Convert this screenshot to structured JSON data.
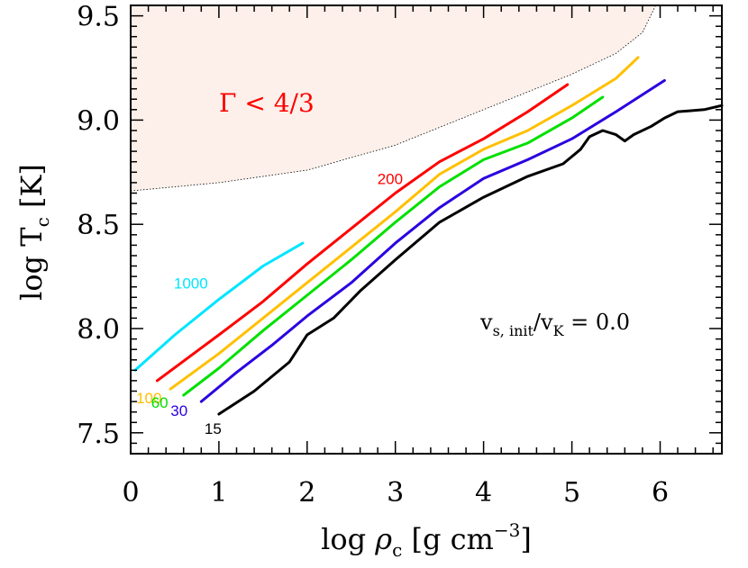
{
  "chart_data": {
    "type": "line",
    "xlabel": {
      "prefix": "log ",
      "symbol": "ρ",
      "sub": "c",
      "unit": " [g cm",
      "exp": "−3",
      "close": "]"
    },
    "ylabel": {
      "prefix": "log T",
      "sub": "c",
      "unit": " [K]"
    },
    "xlim": [
      0,
      6.7
    ],
    "ylim": [
      7.4,
      9.55
    ],
    "x_ticks": [
      "0",
      "1",
      "2",
      "3",
      "4",
      "5",
      "6"
    ],
    "y_ticks": [
      "7.5",
      "8.0",
      "8.5",
      "9.0",
      "9.5"
    ],
    "x_tick_values": [
      0,
      1,
      2,
      3,
      4,
      5,
      6
    ],
    "y_tick_values": [
      7.5,
      8.0,
      8.5,
      9.0,
      9.5
    ],
    "region": {
      "label": "Γ < 4/3",
      "color": "#fdf0ea",
      "boundary": [
        [
          0.0,
          8.66
        ],
        [
          1.0,
          8.7
        ],
        [
          2.0,
          8.76
        ],
        [
          3.0,
          8.88
        ],
        [
          4.0,
          9.05
        ],
        [
          5.0,
          9.22
        ],
        [
          5.5,
          9.32
        ],
        [
          5.8,
          9.42
        ],
        [
          5.95,
          9.55
        ]
      ]
    },
    "annotation": {
      "v": "v",
      "sub1": "s, init",
      "slash": "/v",
      "sub2": "K",
      "rest": " = 0.0"
    },
    "series": [
      {
        "mass": "1000",
        "color": "#00e5ff",
        "points": [
          [
            0.05,
            7.8
          ],
          [
            0.5,
            7.97
          ],
          [
            1.0,
            8.14
          ],
          [
            1.5,
            8.3
          ],
          [
            1.95,
            8.41
          ]
        ]
      },
      {
        "mass": "200",
        "color": "#ff0000",
        "points": [
          [
            0.3,
            7.75
          ],
          [
            1.0,
            7.97
          ],
          [
            1.5,
            8.13
          ],
          [
            2.0,
            8.31
          ],
          [
            2.5,
            8.48
          ],
          [
            3.0,
            8.65
          ],
          [
            3.5,
            8.8
          ],
          [
            4.0,
            8.91
          ],
          [
            4.5,
            9.04
          ],
          [
            4.95,
            9.17
          ]
        ]
      },
      {
        "mass": "100",
        "color": "#ffc000",
        "points": [
          [
            0.45,
            7.71
          ],
          [
            1.0,
            7.88
          ],
          [
            1.5,
            8.05
          ],
          [
            2.0,
            8.22
          ],
          [
            2.5,
            8.39
          ],
          [
            3.0,
            8.56
          ],
          [
            3.5,
            8.74
          ],
          [
            4.0,
            8.86
          ],
          [
            4.5,
            8.95
          ],
          [
            5.0,
            9.07
          ],
          [
            5.5,
            9.2
          ],
          [
            5.75,
            9.3
          ]
        ]
      },
      {
        "mass": "60",
        "color": "#00e000",
        "points": [
          [
            0.6,
            7.68
          ],
          [
            1.0,
            7.81
          ],
          [
            1.5,
            7.99
          ],
          [
            2.0,
            8.16
          ],
          [
            2.5,
            8.33
          ],
          [
            3.0,
            8.51
          ],
          [
            3.5,
            8.68
          ],
          [
            4.0,
            8.81
          ],
          [
            4.5,
            8.89
          ],
          [
            5.0,
            9.01
          ],
          [
            5.35,
            9.11
          ]
        ]
      },
      {
        "mass": "30",
        "color": "#2b00e0",
        "points": [
          [
            0.8,
            7.65
          ],
          [
            1.2,
            7.79
          ],
          [
            1.6,
            7.92
          ],
          [
            2.0,
            8.06
          ],
          [
            2.5,
            8.22
          ],
          [
            3.0,
            8.41
          ],
          [
            3.5,
            8.58
          ],
          [
            4.0,
            8.72
          ],
          [
            4.5,
            8.81
          ],
          [
            5.0,
            8.91
          ],
          [
            5.5,
            9.04
          ],
          [
            6.05,
            9.19
          ]
        ]
      },
      {
        "mass": "15",
        "color": "#000000",
        "points": [
          [
            1.0,
            7.59
          ],
          [
            1.4,
            7.7
          ],
          [
            1.8,
            7.84
          ],
          [
            2.0,
            7.97
          ],
          [
            2.3,
            8.05
          ],
          [
            2.6,
            8.18
          ],
          [
            3.0,
            8.33
          ],
          [
            3.5,
            8.51
          ],
          [
            4.0,
            8.63
          ],
          [
            4.5,
            8.73
          ],
          [
            4.9,
            8.79
          ],
          [
            5.1,
            8.86
          ],
          [
            5.2,
            8.92
          ],
          [
            5.35,
            8.95
          ],
          [
            5.5,
            8.93
          ],
          [
            5.6,
            8.9
          ],
          [
            5.7,
            8.93
          ],
          [
            5.9,
            8.97
          ],
          [
            6.05,
            9.01
          ],
          [
            6.2,
            9.04
          ],
          [
            6.5,
            9.05
          ],
          [
            6.7,
            9.07
          ]
        ]
      }
    ]
  }
}
